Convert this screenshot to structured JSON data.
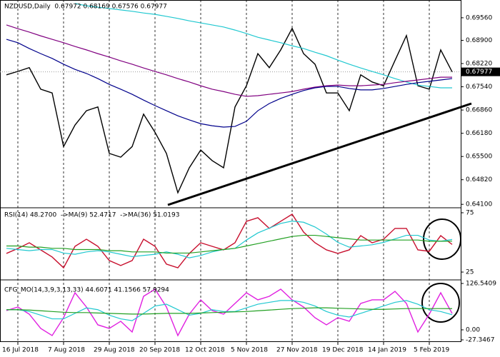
{
  "chart_data": [
    {
      "type": "line",
      "title": "NZDUSD,Daily  0.67972 0.68169 0.67576 0.67977",
      "categories": [
        null,
        "16 Jul 2018",
        null,
        null,
        null,
        "7 Aug 2018",
        null,
        null,
        null,
        "29 Aug 2018",
        null,
        null,
        null,
        "20 Sep 2018",
        null,
        null,
        null,
        "12 Oct 2018",
        null,
        null,
        null,
        "5 Nov 2018",
        null,
        null,
        null,
        "27 Nov 2018",
        null,
        null,
        null,
        "19 Dec 2018",
        null,
        null,
        null,
        "14 Jan 2019",
        null,
        null,
        null,
        "5 Feb 2019",
        null,
        null
      ],
      "ylim": [
        0.6402,
        0.7008
      ],
      "yticks": [
        {
          "value": 0.6956,
          "label": "0.69560"
        },
        {
          "value": 0.689,
          "label": "0.68900"
        },
        {
          "value": 0.6822,
          "label": "0.68220"
        },
        {
          "value": 0.6754,
          "label": "0.67540"
        },
        {
          "value": 0.6686,
          "label": "0.66860"
        },
        {
          "value": 0.6618,
          "label": "0.66180"
        },
        {
          "value": 0.655,
          "label": "0.65500"
        },
        {
          "value": 0.6482,
          "label": "0.64820"
        },
        {
          "value": 0.641,
          "label": "0.64100"
        }
      ],
      "last_price": 0.67977,
      "grid": true,
      "series": [
        {
          "color": "#000000",
          "values": [
            0.6789,
            0.6799,
            0.681,
            0.6747,
            0.6736,
            0.6579,
            0.6642,
            0.6684,
            0.6695,
            0.6559,
            0.6548,
            0.6579,
            0.6674,
            0.6621,
            0.6559,
            0.6444,
            0.6517,
            0.6569,
            0.6538,
            0.6517,
            0.6695,
            0.6757,
            0.6851,
            0.681,
            0.6862,
            0.6925,
            0.6851,
            0.682,
            0.6736,
            0.6736,
            0.6684,
            0.6789,
            0.6768,
            0.6757,
            0.6831,
            0.6904,
            0.6757,
            0.6747,
            0.6862,
            0.67977
          ]
        },
        {
          "color": "#20c8d0",
          "values": [
            null,
            null,
            null,
            null,
            null,
            null,
            0.6998,
            0.6991,
            0.6987,
            0.6983,
            0.6979,
            0.6975,
            0.697,
            0.6966,
            0.696,
            0.6954,
            0.6947,
            0.6941,
            0.6935,
            0.6929,
            0.692,
            0.691,
            0.6899,
            0.6891,
            0.6883,
            0.6874,
            0.6866,
            0.6855,
            0.6845,
            0.6832,
            0.682,
            0.6809,
            0.6799,
            0.6789,
            0.6778,
            0.6768,
            0.6759,
            0.6755,
            0.6751,
            0.6751
          ]
        },
        {
          "color": "#800080",
          "values": [
            0.6935,
            0.6924,
            0.6914,
            0.6903,
            0.6893,
            0.6883,
            0.6872,
            0.6862,
            0.6851,
            0.6841,
            0.683,
            0.682,
            0.6809,
            0.6799,
            0.6789,
            0.6778,
            0.6768,
            0.6757,
            0.6747,
            0.674,
            0.6732,
            0.6726,
            0.6728,
            0.6732,
            0.6736,
            0.674,
            0.6747,
            0.6753,
            0.6757,
            0.6759,
            0.6757,
            0.6757,
            0.6759,
            0.6761,
            0.6766,
            0.677,
            0.6774,
            0.6778,
            0.6782,
            0.6782
          ]
        },
        {
          "color": "#00008b",
          "values": [
            0.6893,
            0.6883,
            0.6866,
            0.6851,
            0.6837,
            0.682,
            0.6805,
            0.6793,
            0.6778,
            0.6761,
            0.6747,
            0.6732,
            0.6715,
            0.6699,
            0.6684,
            0.6669,
            0.6657,
            0.6646,
            0.664,
            0.6636,
            0.6638,
            0.6653,
            0.6684,
            0.6705,
            0.672,
            0.6732,
            0.6743,
            0.6751,
            0.6755,
            0.6755,
            0.6749,
            0.6745,
            0.6745,
            0.6749,
            0.6755,
            0.6761,
            0.6766,
            0.677,
            0.6774,
            0.6778
          ]
        }
      ]
    },
    {
      "type": "line",
      "title": "RSI(14) 48.2700  ->MA(9) 52.4717  ->MA(36) 51.0193",
      "ylim": [
        19.6,
        78.6
      ],
      "yticks": [
        75,
        25
      ],
      "series": [
        {
          "color": "#c8102e",
          "values": [
            40.7,
            44.9,
            49.7,
            43.7,
            37.7,
            28.6,
            46.7,
            52.7,
            46.7,
            34.7,
            30.5,
            34.7,
            52.7,
            46.7,
            31.7,
            28.6,
            40.7,
            49.7,
            46.7,
            43.7,
            49.7,
            67.8,
            70.8,
            61.8,
            67.8,
            73.8,
            58.7,
            49.7,
            43.7,
            40.7,
            43.7,
            55.7,
            49.7,
            52.7,
            61.8,
            61.8,
            43.7,
            42.5,
            55.7,
            48.27
          ]
        },
        {
          "color": "#20c8d0",
          "values": [
            45,
            44,
            43,
            44,
            44,
            41,
            40,
            42,
            43,
            42,
            40,
            38,
            39,
            40,
            42,
            40,
            37,
            39,
            42,
            44,
            45,
            52,
            58,
            62,
            66,
            68,
            67,
            63,
            57,
            50,
            46,
            47,
            48,
            50,
            53,
            56,
            56,
            52,
            51,
            52.47
          ]
        },
        {
          "color": "#22a022",
          "values": [
            47,
            47,
            46,
            46,
            45,
            45,
            44,
            44,
            44,
            43,
            43,
            42,
            42,
            42,
            41,
            41,
            41,
            42,
            43,
            44,
            45,
            47,
            49,
            51,
            53,
            55,
            56,
            56,
            55,
            54,
            53,
            52,
            52,
            52,
            52,
            52,
            52,
            51,
            51,
            51.02
          ]
        }
      ]
    },
    {
      "type": "line",
      "title": "CFG_MO(14,3,9,3,13,33) 44.6071 41.1566 57.9294",
      "ylim": [
        -27.3467,
        126.5409
      ],
      "yticks": [
        126.5409,
        {
          "value": 0,
          "label": "0.00"
        },
        -27.3467
      ],
      "series": [
        {
          "color": "#e020e0",
          "values": [
            52.5,
            62.3,
            42.8,
            3.9,
            -15.6,
            33.1,
            101.2,
            62.3,
            13.6,
            3.9,
            23.4,
            -5.9,
            91.5,
            111,
            62.3,
            -15.6,
            42.8,
            81.8,
            52.5,
            42.8,
            72,
            101.2,
            81.8,
            91.5,
            111,
            81.8,
            62.3,
            33.1,
            13.6,
            33.1,
            23.4,
            72,
            81.8,
            81.8,
            105.1,
            72,
            -5.9,
            42.8,
            101.2,
            44.6
          ]
        },
        {
          "color": "#20c8d0",
          "values": [
            55,
            55,
            50,
            40,
            30,
            30,
            45,
            60,
            55,
            40,
            30,
            25,
            45,
            65,
            70,
            55,
            40,
            45,
            55,
            50,
            50,
            60,
            70,
            75,
            80,
            80,
            75,
            65,
            50,
            40,
            35,
            45,
            55,
            65,
            75,
            80,
            70,
            55,
            50,
            41.16
          ]
        },
        {
          "color": "#22a022",
          "values": [
            55,
            55,
            54,
            52,
            50,
            48,
            47,
            47,
            46,
            45,
            44,
            43,
            43,
            44,
            45,
            45,
            45,
            46,
            47,
            48,
            49,
            50,
            52,
            54,
            56,
            58,
            59,
            60,
            60,
            59,
            58,
            57,
            56,
            56,
            57,
            58,
            58,
            58,
            58,
            57.93
          ]
        }
      ]
    }
  ]
}
